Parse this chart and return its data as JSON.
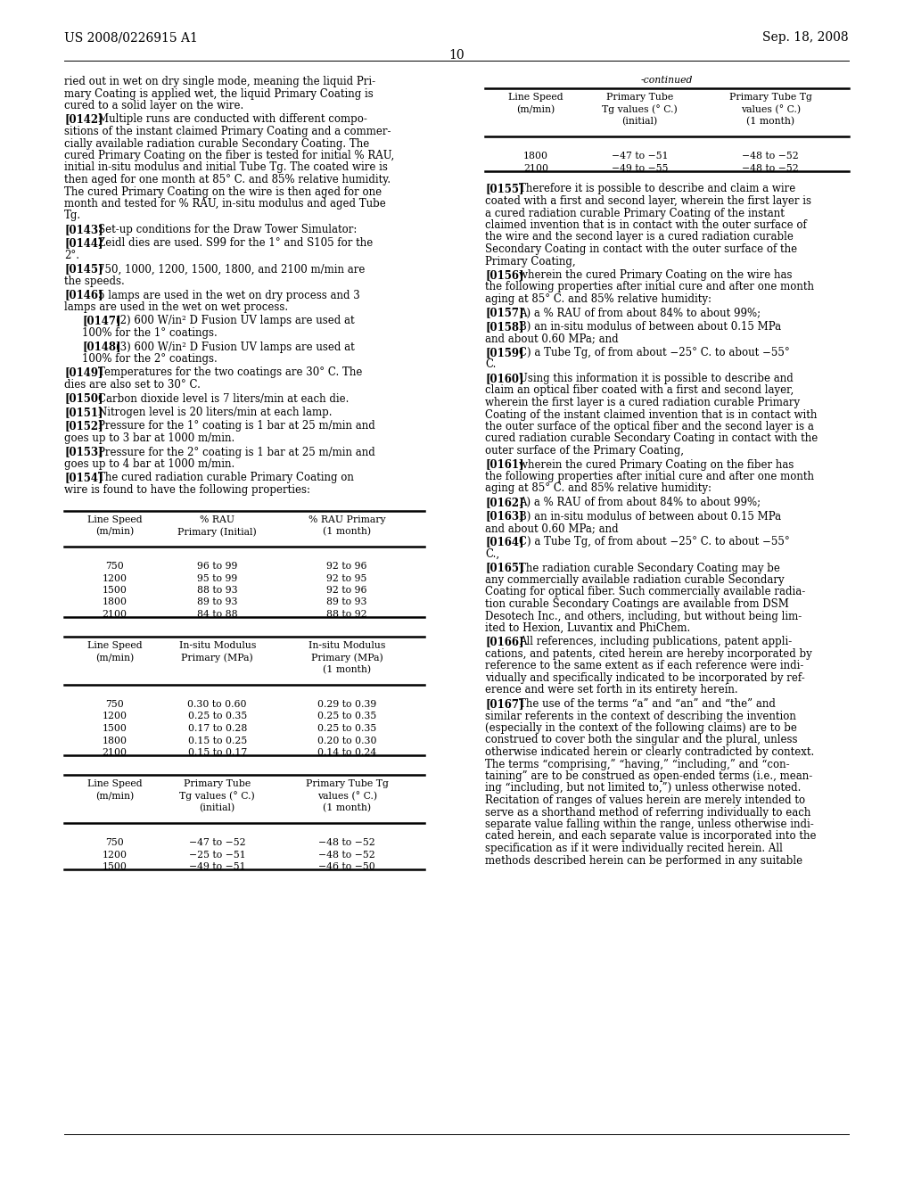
{
  "page_header_left": "US 2008/0226915 A1",
  "page_header_right": "Sep. 18, 2008",
  "page_number": "10",
  "background_color": "#ffffff",
  "table1_rows": [
    [
      "750",
      "96 to 99",
      "92 to 96"
    ],
    [
      "1200",
      "95 to 99",
      "92 to 95"
    ],
    [
      "1500",
      "88 to 93",
      "92 to 96"
    ],
    [
      "1800",
      "89 to 93",
      "89 to 93"
    ],
    [
      "2100",
      "84 to 88",
      "88 to 92"
    ]
  ],
  "table2_rows": [
    [
      "750",
      "0.30 to 0.60",
      "0.29 to 0.39"
    ],
    [
      "1200",
      "0.25 to 0.35",
      "0.25 to 0.35"
    ],
    [
      "1500",
      "0.17 to 0.28",
      "0.25 to 0.35"
    ],
    [
      "1800",
      "0.15 to 0.25",
      "0.20 to 0.30"
    ],
    [
      "2100",
      "0.15 to 0.17",
      "0.14 to 0.24"
    ]
  ],
  "table3_rows": [
    [
      "750",
      "−47 to −52",
      "−48 to −52"
    ],
    [
      "1200",
      "−25 to −51",
      "−48 to −52"
    ],
    [
      "1500",
      "−49 to −51",
      "−46 to −50"
    ]
  ],
  "table_cont_rows": [
    [
      "1800",
      "−47 to −51",
      "−48 to −52"
    ],
    [
      "2100",
      "−49 to −55",
      "−48 to −52"
    ]
  ]
}
